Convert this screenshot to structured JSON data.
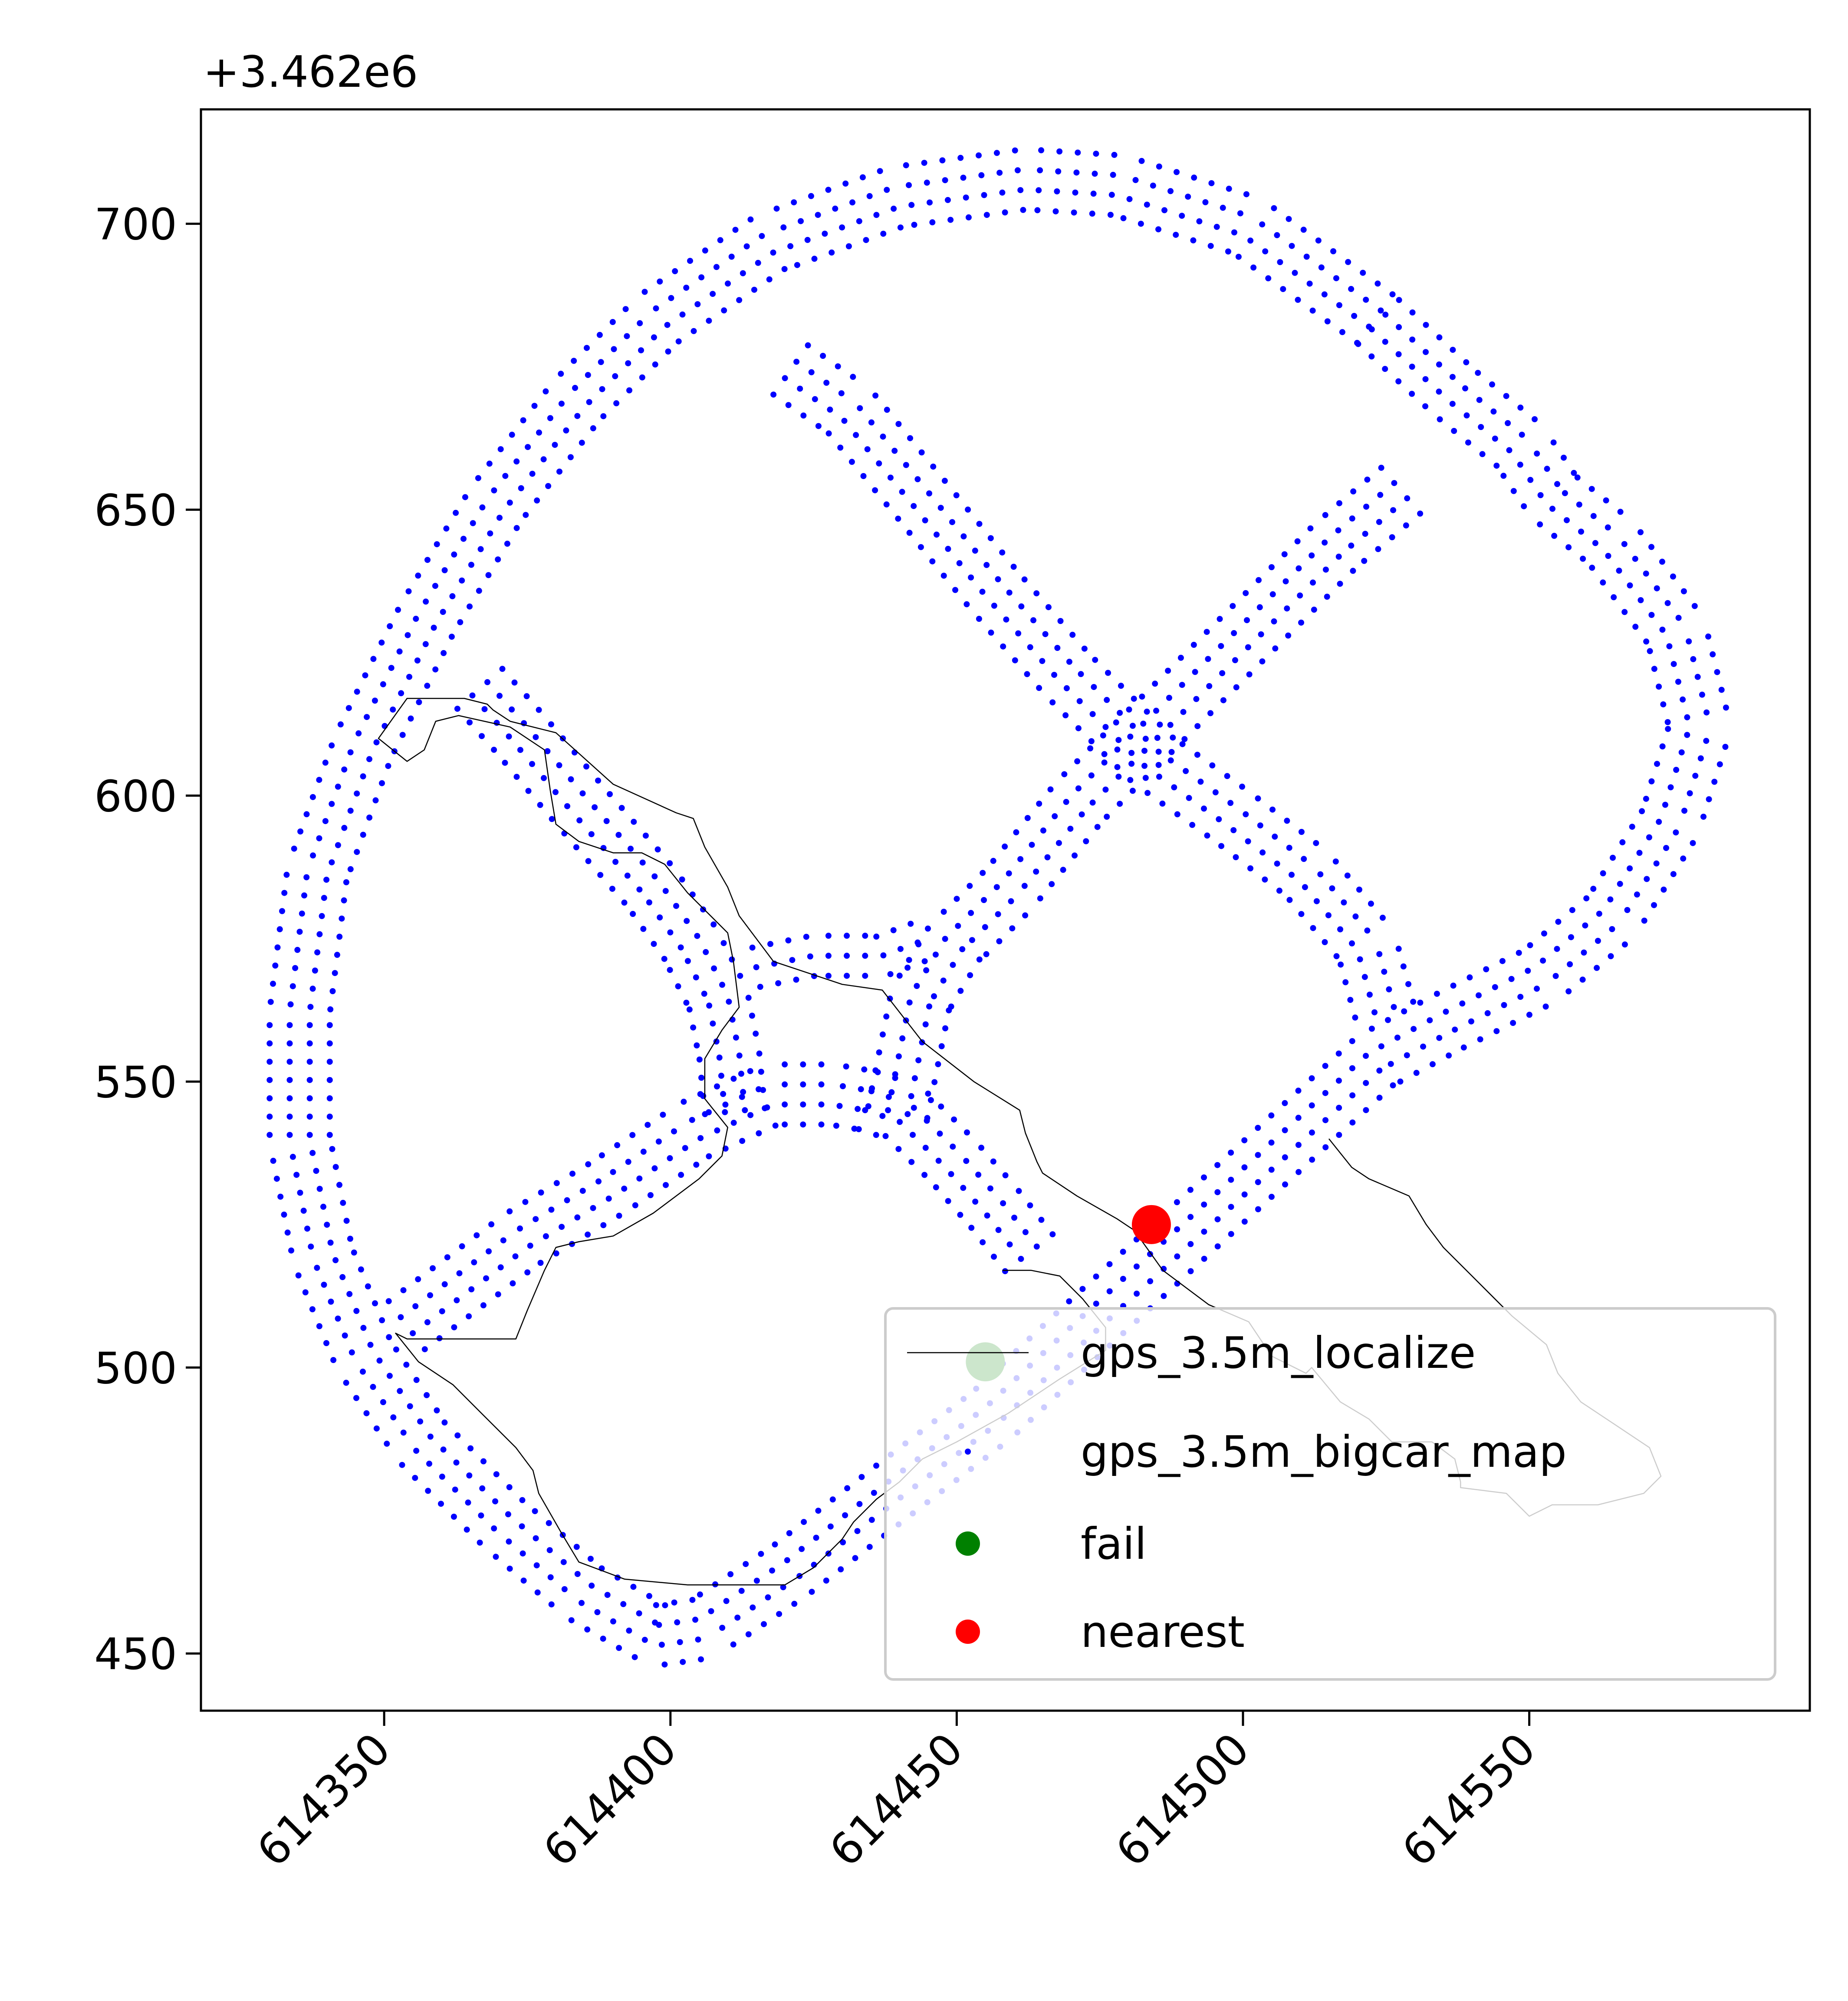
{
  "chart_data": {
    "type": "scatter",
    "title": "",
    "xlabel": "",
    "ylabel": "",
    "y_offset_label": "+3.462e6",
    "xlim": [
      614318,
      614599
    ],
    "ylim": [
      440,
      720
    ],
    "x_ticks": [
      {
        "value": 614350,
        "label": "614350"
      },
      {
        "value": 614400,
        "label": "614400"
      },
      {
        "value": 614450,
        "label": "614450"
      },
      {
        "value": 614500,
        "label": "614500"
      },
      {
        "value": 614550,
        "label": "614550"
      }
    ],
    "x_tick_rotation_deg": 45,
    "y_ticks": [
      {
        "value": 450,
        "label": "450"
      },
      {
        "value": 500,
        "label": "500"
      },
      {
        "value": 550,
        "label": "550"
      },
      {
        "value": 600,
        "label": "600"
      },
      {
        "value": 650,
        "label": "650"
      },
      {
        "value": 700,
        "label": "700"
      }
    ],
    "grid": false,
    "legend_position": "lower-right",
    "colors": {
      "map_points": "#0000ff",
      "localize_line": "#000000",
      "fail": "#008000",
      "nearest": "#ff0000"
    },
    "series": [
      {
        "name": "gps_3.5m_localize",
        "kind": "line",
        "x": [
          614458,
          614463,
          614468,
          614472,
          614476,
          614476,
          614468,
          614459,
          614450,
          614444,
          614440,
          614436,
          614432,
          614430,
          614428,
          614425,
          614420,
          614413,
          614403,
          614392,
          614384,
          614381,
          614377,
          614376,
          614373,
          614367,
          614362,
          614356,
          614352,
          614354,
          614358,
          614364,
          614373,
          614375,
          614378,
          614380,
          614384,
          614390,
          614397,
          614405,
          614409,
          614410,
          614406,
          614406,
          614409,
          614412,
          614411,
          614410,
          614403,
          614399,
          614395,
          614390,
          614384,
          614380,
          614379,
          614378,
          614372,
          614363,
          614359,
          614357,
          614354,
          614349,
          614354,
          614364,
          614368,
          614369,
          614372,
          614380,
          614390,
          614401,
          614404,
          614406,
          614410,
          614412,
          614418,
          614430,
          614437,
          614444,
          614453,
          614461,
          614462,
          614464,
          614465,
          614471,
          614478,
          614481,
          614486,
          614494,
          614501,
          614505,
          614511,
          614512,
          614517,
          614522,
          614526,
          614533,
          614537,
          614538,
          614538,
          614546,
          614550,
          614554,
          614562,
          614570,
          614573,
          614571,
          614565,
          614559,
          614555,
          614553,
          614547,
          614540,
          614535,
          614532,
          614529,
          614522,
          614519,
          614515
        ],
        "y": [
          517,
          517,
          516,
          512,
          507,
          503,
          498,
          492,
          487,
          484,
          480,
          477,
          473,
          470,
          468,
          465,
          462,
          462,
          462,
          463,
          466,
          471,
          478,
          482,
          486,
          492,
          497,
          501,
          506,
          505,
          505,
          505,
          505,
          510,
          517,
          521,
          522,
          523,
          527,
          533,
          537,
          542,
          547,
          554,
          559,
          563,
          571,
          576,
          583,
          588,
          590,
          590,
          592,
          595,
          601,
          608,
          612,
          614,
          613,
          608,
          606,
          610,
          617,
          617,
          616,
          615,
          613,
          611,
          602,
          597,
          596,
          591,
          584,
          579,
          571,
          567,
          566,
          557,
          550,
          545,
          541,
          536,
          534,
          530,
          526,
          524,
          517,
          511,
          508,
          502,
          499,
          500,
          494,
          491,
          487,
          487,
          484,
          480,
          479,
          478,
          474,
          476,
          476,
          478,
          481,
          486,
          490,
          494,
          499,
          504,
          509,
          516,
          521,
          525,
          530,
          533,
          535,
          540
        ]
      },
      {
        "name": "gps_3.5m_bigcar_map",
        "kind": "scatter",
        "note_style": "dense dotted road network drawn from road segments",
        "segments": [
          {
            "path": [
              [
                614472,
                509
              ],
              [
                614522,
                555
              ],
              [
                614535,
                562
              ],
              [
                614551,
                570
              ],
              [
                614563,
                580
              ],
              [
                614573,
                596
              ],
              [
                614578,
                612
              ],
              [
                614574,
                628
              ],
              [
                614563,
                643
              ],
              [
                614553,
                651
              ],
              [
                614547,
                660
              ],
              [
                614536,
                669
              ],
              [
                614522,
                682
              ]
            ],
            "offsets": [
              -7,
              -3.5,
              0,
              3.5
            ],
            "kind": "road"
          },
          {
            "path": [
              [
                614522,
                682
              ],
              [
                614500,
                698
              ],
              [
                614478,
                705
              ],
              [
                614462,
                706
              ],
              [
                614440,
                703
              ],
              [
                614418,
                695
              ],
              [
                614399,
                682
              ],
              [
                614385,
                668
              ],
              [
                614371,
                650
              ],
              [
                614359,
                630
              ],
              [
                614348,
                608
              ],
              [
                614340,
                586
              ],
              [
                614337,
                562
              ],
              [
                614337,
                540
              ],
              [
                614341,
                520
              ],
              [
                614348,
                503
              ],
              [
                614358,
                488
              ],
              [
                614372,
                474
              ],
              [
                614386,
                462
              ],
              [
                614398,
                455
              ]
            ],
            "offsets": [
              -7,
              -3.5,
              0,
              3.5
            ],
            "kind": "road"
          },
          {
            "path": [
              [
                614398,
                455
              ],
              [
                614405,
                456
              ],
              [
                614420,
                466
              ],
              [
                614438,
                480
              ],
              [
                614455,
                493
              ],
              [
                614472,
                509
              ]
            ],
            "offsets": [
              -7,
              -3.5,
              0,
              3.5
            ],
            "kind": "road"
          },
          {
            "path": [
              [
                614355,
                506
              ],
              [
                614375,
                521
              ],
              [
                614390,
                530
              ],
              [
                614405,
                540
              ],
              [
                614418,
                546
              ],
              [
                614428,
                546
              ],
              [
                614434,
                545
              ]
            ],
            "offsets": [
              -3.5,
              0,
              3.5,
              7
            ],
            "kind": "road"
          },
          {
            "path": [
              [
                614434,
                545
              ],
              [
                614440,
                543
              ],
              [
                614448,
                535
              ],
              [
                614455,
                527
              ],
              [
                614462,
                518
              ]
            ],
            "offsets": [
              -3.5,
              0,
              3.5,
              7
            ],
            "kind": "road"
          },
          {
            "path": [
              [
                614438,
                545
              ],
              [
                614440,
                555
              ],
              [
                614442,
                565
              ],
              [
                614448,
                575
              ],
              [
                614458,
                585
              ],
              [
                614470,
                600
              ],
              [
                614485,
                615
              ],
              [
                614500,
                630
              ],
              [
                614515,
                645
              ],
              [
                614528,
                656
              ]
            ],
            "offsets": [
              -7,
              -3.5,
              0,
              3.5
            ],
            "kind": "road"
          },
          {
            "path": [
              [
                614413,
                545
              ],
              [
                614412,
                555
              ],
              [
                614410,
                565
              ],
              [
                614405,
                575
              ],
              [
                614398,
                585
              ],
              [
                614385,
                600
              ],
              [
                614375,
                612
              ],
              [
                614367,
                621
              ]
            ],
            "offsets": [
              -3.5,
              0,
              3.5,
              7
            ],
            "kind": "road"
          },
          {
            "path": [
              [
                614415,
                570
              ],
              [
                614425,
                572
              ],
              [
                614437,
                572
              ],
              [
                614445,
                575
              ]
            ],
            "offsets": [
              -3.5,
              0,
              3.5
            ],
            "kind": "road"
          },
          {
            "path": [
              [
                614420,
                673
              ],
              [
                614430,
                666
              ],
              [
                614443,
                650
              ],
              [
                614455,
                635
              ],
              [
                614468,
                620
              ],
              [
                614483,
                605
              ],
              [
                614497,
                595
              ],
              [
                614510,
                585
              ],
              [
                614520,
                573
              ],
              [
                614523,
                562
              ]
            ],
            "offsets": [
              -3.5,
              0,
              3.5,
              7
            ],
            "kind": "road"
          }
        ],
        "dot_spacing": 3.2
      },
      {
        "name": "fail",
        "kind": "scatter",
        "x": [
          614455
        ],
        "y": [
          501
        ]
      },
      {
        "name": "nearest",
        "kind": "scatter",
        "x": [
          614484
        ],
        "y": [
          525
        ]
      }
    ],
    "legend_entries": [
      {
        "series": "gps_3.5m_localize",
        "label": "gps_3.5m_localize"
      },
      {
        "series": "gps_3.5m_bigcar_map",
        "label": "gps_3.5m_bigcar_map"
      },
      {
        "series": "fail",
        "label": "fail"
      },
      {
        "series": "nearest",
        "label": "nearest"
      }
    ]
  }
}
